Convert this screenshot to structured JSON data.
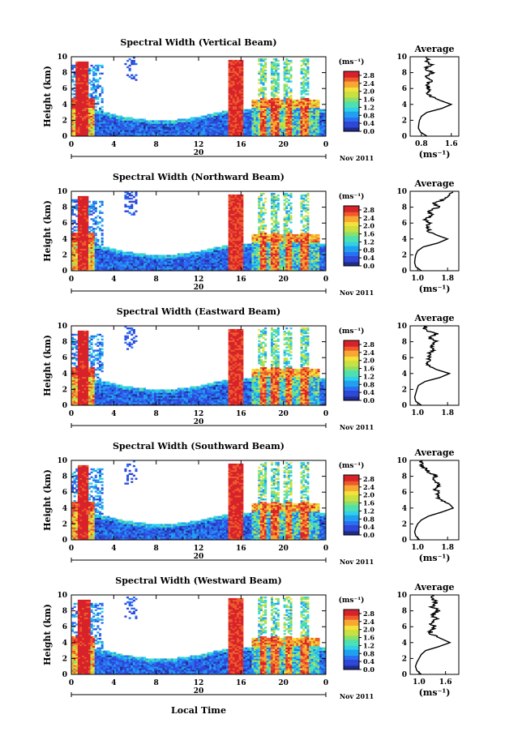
{
  "figure": {
    "xlabel": "Local Time",
    "date_label": "Nov 2011",
    "unit_label": "(ms⁻¹)",
    "colors": {
      "palette": [
        "#1f2a8c",
        "#2e46d6",
        "#2a6ff2",
        "#22a0f0",
        "#2fd0e8",
        "#4fe0b0",
        "#8ae06a",
        "#c9e040",
        "#f4e23a",
        "#f8a832",
        "#ee5a2c",
        "#d8222a"
      ]
    }
  },
  "chart_data": [
    {
      "type": "heatmap",
      "title": "Spectral Width (Vertical Beam)",
      "ylabel": "Height (km)",
      "x_ticks": [
        "0",
        "4",
        "8",
        "12",
        "16",
        "20",
        "0"
      ],
      "x_range": [
        0,
        24
      ],
      "y_ticks": [
        "0",
        "2",
        "4",
        "6",
        "8",
        "10"
      ],
      "y_range": [
        0,
        10
      ],
      "day_tick": "20",
      "colorbar": {
        "ticks": [
          "0.0",
          "0.4",
          "0.8",
          "1.2",
          "1.6",
          "2.0",
          "2.4",
          "2.8"
        ],
        "range": [
          0,
          3.0
        ]
      },
      "profile": {
        "title": "Average",
        "xlabel": "(ms⁻¹)",
        "x_ticks": [
          "0.8",
          "1.6"
        ],
        "x_range": [
          0.5,
          1.8
        ],
        "heights": [
          0,
          0.5,
          1,
          1.5,
          2,
          2.5,
          3,
          3.5,
          4,
          4.5,
          5,
          5.5,
          6,
          6.5,
          7,
          7.5,
          8,
          8.5,
          9,
          9.5
        ],
        "values": [
          0.95,
          0.78,
          0.72,
          0.73,
          0.75,
          0.8,
          0.95,
          1.35,
          1.6,
          1.3,
          1.05,
          0.98,
          1.0,
          0.95,
          1.05,
          0.92,
          1.1,
          0.9,
          1.05,
          0.95
        ]
      }
    },
    {
      "type": "heatmap",
      "title": "Spectral Width (Northward Beam)",
      "ylabel": "Height (km)",
      "x_ticks": [
        "0",
        "4",
        "8",
        "12",
        "16",
        "20",
        "0"
      ],
      "x_range": [
        0,
        24
      ],
      "y_ticks": [
        "0",
        "2",
        "4",
        "6",
        "8",
        "10"
      ],
      "y_range": [
        0,
        10
      ],
      "day_tick": "20",
      "colorbar": {
        "ticks": [
          "0.0",
          "0.4",
          "0.8",
          "1.2",
          "1.6",
          "2.0",
          "2.4",
          "2.8"
        ],
        "range": [
          0,
          3.0
        ]
      },
      "profile": {
        "title": "Average",
        "xlabel": "(ms⁻¹)",
        "x_ticks": [
          "1.0",
          "1.8"
        ],
        "x_range": [
          0.8,
          2.1
        ],
        "heights": [
          0,
          0.5,
          1,
          1.5,
          2,
          2.5,
          3,
          3.5,
          4,
          4.5,
          5,
          5.5,
          6,
          6.5,
          7,
          7.5,
          8,
          8.5,
          9,
          9.5
        ],
        "values": [
          1.1,
          0.95,
          0.92,
          0.93,
          0.95,
          1.0,
          1.15,
          1.55,
          1.8,
          1.5,
          1.3,
          1.25,
          1.3,
          1.2,
          1.4,
          1.3,
          1.55,
          1.45,
          1.7,
          1.9
        ]
      }
    },
    {
      "type": "heatmap",
      "title": "Spectral Width (Eastward Beam)",
      "ylabel": "Height (km)",
      "x_ticks": [
        "0",
        "4",
        "8",
        "12",
        "16",
        "20",
        "0"
      ],
      "x_range": [
        0,
        24
      ],
      "y_ticks": [
        "0",
        "2",
        "4",
        "6",
        "8",
        "10"
      ],
      "y_range": [
        0,
        10
      ],
      "day_tick": "20",
      "colorbar": {
        "ticks": [
          "0.0",
          "0.4",
          "0.8",
          "1.2",
          "1.6",
          "2.0",
          "2.4",
          "2.8"
        ],
        "range": [
          0,
          3.0
        ]
      },
      "profile": {
        "title": "Average",
        "xlabel": "",
        "x_ticks": [
          "1.0",
          "1.8"
        ],
        "x_range": [
          0.8,
          2.1
        ],
        "heights": [
          0,
          0.5,
          1,
          1.5,
          2,
          2.5,
          3,
          3.5,
          4,
          4.5,
          5,
          5.5,
          6,
          6.5,
          7,
          7.5,
          8,
          8.5,
          9,
          9.5
        ],
        "values": [
          1.1,
          0.95,
          0.92,
          0.95,
          0.98,
          1.02,
          1.2,
          1.6,
          1.85,
          1.5,
          1.3,
          1.25,
          1.35,
          1.3,
          1.45,
          1.35,
          1.5,
          1.3,
          1.5,
          1.2
        ]
      }
    },
    {
      "type": "heatmap",
      "title": "Spectral Width (Southward Beam)",
      "ylabel": "Height (km)",
      "x_ticks": [
        "0",
        "4",
        "8",
        "12",
        "16",
        "20",
        "0"
      ],
      "x_range": [
        0,
        24
      ],
      "y_ticks": [
        "0",
        "2",
        "4",
        "6",
        "8",
        "10"
      ],
      "y_range": [
        0,
        10
      ],
      "day_tick": "20",
      "colorbar": {
        "ticks": [
          "0.0",
          "0.4",
          "0.8",
          "1.2",
          "1.6",
          "2.0",
          "2.4",
          "2.8"
        ],
        "range": [
          0,
          3.0
        ]
      },
      "profile": {
        "title": "Average",
        "xlabel": "(ms⁻¹)",
        "x_ticks": [
          "1.0",
          "1.8"
        ],
        "x_range": [
          0.8,
          2.1
        ],
        "heights": [
          0,
          0.5,
          1,
          1.5,
          2,
          2.5,
          3,
          3.5,
          4,
          4.5,
          5,
          5.5,
          6,
          6.5,
          7,
          7.5,
          8,
          8.5,
          9,
          9.5
        ],
        "values": [
          1.05,
          0.95,
          0.92,
          0.95,
          1.0,
          1.1,
          1.3,
          1.65,
          1.95,
          1.85,
          1.6,
          1.5,
          1.55,
          1.45,
          1.6,
          1.4,
          1.5,
          1.3,
          1.2,
          1.1
        ]
      }
    },
    {
      "type": "heatmap",
      "title": "Spectral Width (Westward Beam)",
      "ylabel": "Height (km)",
      "x_ticks": [
        "0",
        "4",
        "8",
        "12",
        "16",
        "20",
        "0"
      ],
      "x_range": [
        0,
        24
      ],
      "y_ticks": [
        "0",
        "2",
        "4",
        "6",
        "8",
        "10"
      ],
      "y_range": [
        0,
        10
      ],
      "day_tick": "20",
      "colorbar": {
        "ticks": [
          "0.0",
          "0.4",
          "0.8",
          "1.2",
          "1.6",
          "2.0",
          "2.4",
          "2.8"
        ],
        "range": [
          0,
          3.0
        ]
      },
      "profile": {
        "title": "Average",
        "xlabel": "(ms⁻¹)",
        "x_ticks": [
          "1.0",
          "1.6"
        ],
        "x_range": [
          0.8,
          1.9
        ],
        "heights": [
          0,
          0.5,
          1,
          1.5,
          2,
          2.5,
          3,
          3.5,
          4,
          4.5,
          5,
          5.5,
          6,
          6.5,
          7,
          7.5,
          8,
          8.5,
          9,
          9.5
        ],
        "values": [
          1.05,
          0.95,
          0.92,
          0.95,
          1.0,
          1.05,
          1.15,
          1.45,
          1.7,
          1.5,
          1.3,
          1.25,
          1.35,
          1.25,
          1.4,
          1.3,
          1.45,
          1.3,
          1.4,
          1.3
        ]
      }
    }
  ]
}
